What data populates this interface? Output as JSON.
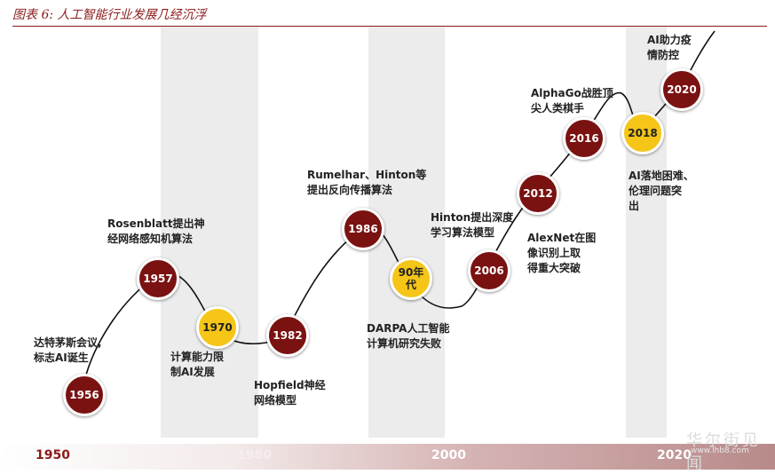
{
  "title": "图表 6:  人工智能行业发展几经沉浮",
  "timeline_labels": [
    "1950",
    "1980",
    "2000",
    "2020"
  ],
  "nodes": [
    {
      "label": "1956",
      "style": "red"
    },
    {
      "label": "1957",
      "style": "red"
    },
    {
      "label": "1970",
      "style": "gold"
    },
    {
      "label": "1982",
      "style": "red"
    },
    {
      "label": "1986",
      "style": "red"
    },
    {
      "label": "90年\n代",
      "style": "gold"
    },
    {
      "label": "2006",
      "style": "red"
    },
    {
      "label": "2012",
      "style": "red"
    },
    {
      "label": "2016",
      "style": "red"
    },
    {
      "label": "2018",
      "style": "gold"
    },
    {
      "label": "2020",
      "style": "red"
    }
  ],
  "annotations": [
    "达特茅斯会议,\n标志AI诞生",
    "Rosenblatt提出神\n经网络感知机算法",
    "计算能力限\n制AI发展",
    "Hopfield神经\n网络模型",
    "Rumelhar、Hinton等\n提出反向传播算法",
    "DARPA人工智能\n计算机研究失败",
    "Hinton提出深度\n学习算法模型",
    "AlexNet在图\n像识别上取\n得重大突破",
    "AlphaGo战胜顶\n尖人类棋手",
    "AI落地困难、\n伦理问题突\n出",
    "AI助力疫\n情防控"
  ],
  "watermark": "华尔街见闻",
  "watermark_url": "www.lhb8.com",
  "colors": {
    "node_red": "#7a1212",
    "node_gold": "#f5c518",
    "title_red": "#8b1a1a",
    "band_gray": "#ececec"
  }
}
